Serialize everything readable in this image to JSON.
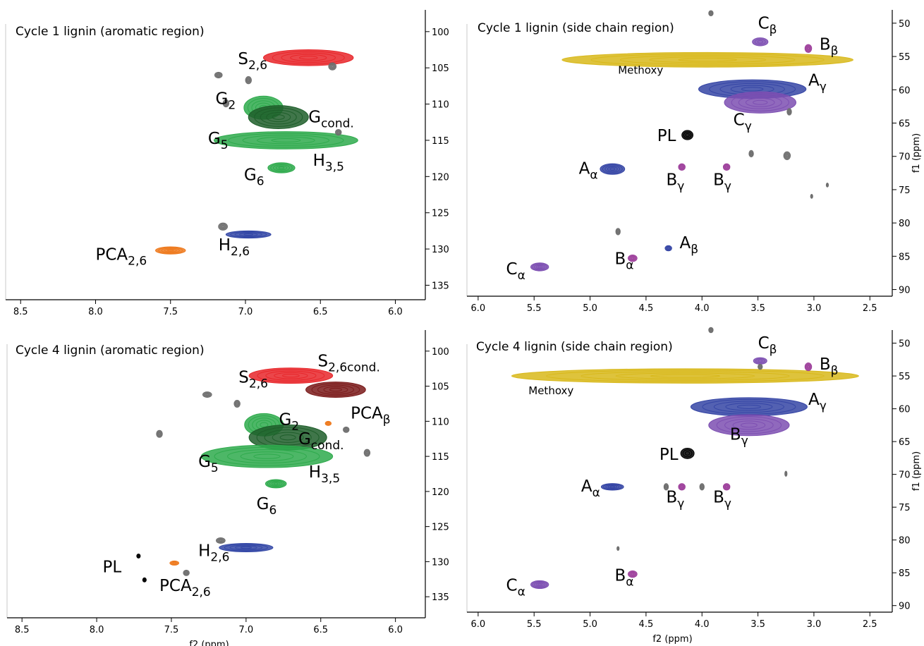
{
  "colors": {
    "S": "#e8262a",
    "Scond": "#7a1a1a",
    "G": "#2eaa4c",
    "Gcond": "#1e5e2a",
    "H": "#3347a6",
    "PCA": "#ee7a1e",
    "A": "#3545a5",
    "B": "#9c3d9a",
    "C": "#7d4fb2",
    "methoxy": "#d8b81a",
    "PL": "#000000",
    "unassigned": "#6e6e6e"
  },
  "axis_names": {
    "x": "f2 (ppm)",
    "y": "f1 (ppm)"
  },
  "chart_data": [
    {
      "type": "contour",
      "title": "Cycle 1 lignin (aromatic region)",
      "xlim": [
        8.6,
        5.8
      ],
      "ylim": [
        137,
        97
      ],
      "xticks": [
        "8.5",
        "8.0",
        "7.5",
        "7.0",
        "6.5",
        "6.0"
      ],
      "yticks": [
        "100",
        "105",
        "110",
        "115",
        "120",
        "125",
        "130",
        "135"
      ],
      "xlabel": "",
      "ylabel": "",
      "peaks": [
        {
          "group": "S",
          "x": 6.58,
          "y": 103.6,
          "rx": 0.3,
          "ry": 1.1
        },
        {
          "group": "G",
          "x": 6.88,
          "y": 110.5,
          "rx": 0.13,
          "ry": 1.6
        },
        {
          "group": "Gcond",
          "x": 6.78,
          "y": 111.8,
          "rx": 0.2,
          "ry": 1.6
        },
        {
          "group": "G",
          "x": 6.73,
          "y": 115.0,
          "rx": 0.48,
          "ry": 1.2
        },
        {
          "group": "G",
          "x": 6.76,
          "y": 118.8,
          "rx": 0.09,
          "ry": 0.7
        },
        {
          "group": "H",
          "x": 6.98,
          "y": 128.0,
          "rx": 0.15,
          "ry": 0.5
        },
        {
          "group": "PCA",
          "x": 7.5,
          "y": 130.2,
          "rx": 0.1,
          "ry": 0.5
        },
        {
          "group": "unassigned",
          "x": 7.18,
          "y": 106.0,
          "rx": 0.025,
          "ry": 0.4
        },
        {
          "group": "unassigned",
          "x": 6.98,
          "y": 106.7,
          "rx": 0.02,
          "ry": 0.5
        },
        {
          "group": "unassigned",
          "x": 6.42,
          "y": 104.8,
          "rx": 0.025,
          "ry": 0.5
        },
        {
          "group": "unassigned",
          "x": 7.13,
          "y": 109.9,
          "rx": 0.02,
          "ry": 0.5
        },
        {
          "group": "unassigned",
          "x": 6.38,
          "y": 113.9,
          "rx": 0.02,
          "ry": 0.4
        },
        {
          "group": "unassigned",
          "x": 7.15,
          "y": 126.9,
          "rx": 0.03,
          "ry": 0.5
        }
      ],
      "labels": [
        {
          "main": "S",
          "sub": "2,6",
          "x": 7.05,
          "y": 104.5
        },
        {
          "main": "G",
          "sub": "2",
          "x": 7.2,
          "y": 110.0
        },
        {
          "main": "G",
          "sub": "cond.",
          "x": 6.58,
          "y": 112.5
        },
        {
          "main": "G",
          "sub": "5",
          "x": 7.25,
          "y": 115.5
        },
        {
          "main": "H",
          "sub": "3,5",
          "x": 6.55,
          "y": 118.5
        },
        {
          "main": "G",
          "sub": "6",
          "x": 7.01,
          "y": 120.5
        },
        {
          "main": "H",
          "sub": "2,6",
          "x": 7.18,
          "y": 130.2
        },
        {
          "main": "PCA",
          "sub": "2,6",
          "x": 8.0,
          "y": 131.5
        }
      ]
    },
    {
      "type": "contour",
      "title": "Cycle 1 lignin (side chain region)",
      "xlim": [
        6.1,
        2.3
      ],
      "ylim": [
        91,
        48
      ],
      "xticks": [
        "6.0",
        "5.5",
        "5.0",
        "4.5",
        "4.0",
        "3.5",
        "3.0",
        "2.5"
      ],
      "yticks": [
        "50",
        "55",
        "60",
        "65",
        "70",
        "75",
        "80",
        "85",
        "90"
      ],
      "xlabel": "",
      "ylabel": "f1 (ppm)",
      "peaks": [
        {
          "group": "methoxy",
          "x": 3.95,
          "y": 55.5,
          "rx": 1.3,
          "ry": 1.1
        },
        {
          "group": "A",
          "x": 3.55,
          "y": 59.9,
          "rx": 0.48,
          "ry": 1.4
        },
        {
          "group": "C",
          "x": 3.48,
          "y": 61.9,
          "rx": 0.32,
          "ry": 1.6
        },
        {
          "group": "C",
          "x": 3.48,
          "y": 52.8,
          "rx": 0.07,
          "ry": 0.6
        },
        {
          "group": "B",
          "x": 3.05,
          "y": 53.8,
          "rx": 0.03,
          "ry": 0.6
        },
        {
          "group": "PL",
          "x": 4.13,
          "y": 66.8,
          "rx": 0.05,
          "ry": 0.7
        },
        {
          "group": "A",
          "x": 4.8,
          "y": 71.9,
          "rx": 0.11,
          "ry": 0.8
        },
        {
          "group": "B",
          "x": 4.18,
          "y": 71.6,
          "rx": 0.03,
          "ry": 0.5
        },
        {
          "group": "B",
          "x": 3.78,
          "y": 71.6,
          "rx": 0.03,
          "ry": 0.5
        },
        {
          "group": "A",
          "x": 4.3,
          "y": 83.8,
          "rx": 0.03,
          "ry": 0.4
        },
        {
          "group": "B",
          "x": 4.62,
          "y": 85.3,
          "rx": 0.04,
          "ry": 0.5
        },
        {
          "group": "C",
          "x": 5.45,
          "y": 86.6,
          "rx": 0.08,
          "ry": 0.6
        },
        {
          "group": "unassigned",
          "x": 3.92,
          "y": 48.5,
          "rx": 0.02,
          "ry": 0.4
        },
        {
          "group": "unassigned",
          "x": 3.24,
          "y": 69.9,
          "rx": 0.03,
          "ry": 0.6
        },
        {
          "group": "unassigned",
          "x": 3.56,
          "y": 69.6,
          "rx": 0.02,
          "ry": 0.5
        },
        {
          "group": "unassigned",
          "x": 3.22,
          "y": 63.3,
          "rx": 0.02,
          "ry": 0.5
        },
        {
          "group": "unassigned",
          "x": 4.75,
          "y": 81.3,
          "rx": 0.02,
          "ry": 0.5
        },
        {
          "group": "unassigned",
          "x": 2.88,
          "y": 74.3,
          "rx": 0.01,
          "ry": 0.3
        },
        {
          "group": "unassigned",
          "x": 3.02,
          "y": 76.0,
          "rx": 0.01,
          "ry": 0.3
        }
      ],
      "labels": [
        {
          "main": "C",
          "sub": "β",
          "x": 3.5,
          "y": 50.8
        },
        {
          "main": "B",
          "sub": "β",
          "x": 2.95,
          "y": 54.0
        },
        {
          "main": "",
          "sub": "",
          "text": "Methoxy",
          "x": 4.75,
          "y": 57.6
        },
        {
          "main": "A",
          "sub": "γ",
          "x": 3.05,
          "y": 59.4
        },
        {
          "main": "C",
          "sub": "γ",
          "x": 3.72,
          "y": 65.3
        },
        {
          "main": "",
          "sub": "",
          "text": "PL",
          "x": 4.4,
          "y": 67.7
        },
        {
          "main": "A",
          "sub": "α",
          "x": 5.1,
          "y": 72.6
        },
        {
          "main": "B",
          "sub": "γ",
          "x": 4.32,
          "y": 74.3
        },
        {
          "main": "B",
          "sub": "γ",
          "x": 3.9,
          "y": 74.3
        },
        {
          "main": "A",
          "sub": "β",
          "x": 4.2,
          "y": 83.8
        },
        {
          "main": "B",
          "sub": "α",
          "x": 4.78,
          "y": 86.2
        },
        {
          "main": "C",
          "sub": "α",
          "x": 5.75,
          "y": 87.7
        }
      ]
    },
    {
      "type": "contour",
      "title": "Cycle 4 lignin (aromatic region)",
      "xlim": [
        8.6,
        5.8
      ],
      "ylim": [
        138,
        97
      ],
      "xticks": [
        "8.5",
        "8.0",
        "7.5",
        "7.0",
        "6.5",
        "6.0"
      ],
      "yticks": [
        "100",
        "105",
        "110",
        "115",
        "120",
        "125",
        "130",
        "135"
      ],
      "xlabel": "f2 (ppm)",
      "ylabel": "",
      "peaks": [
        {
          "group": "S",
          "x": 6.7,
          "y": 103.5,
          "rx": 0.28,
          "ry": 1.1
        },
        {
          "group": "Scond",
          "x": 6.4,
          "y": 105.5,
          "rx": 0.2,
          "ry": 1.1
        },
        {
          "group": "G",
          "x": 6.88,
          "y": 110.5,
          "rx": 0.13,
          "ry": 1.6
        },
        {
          "group": "Gcond",
          "x": 6.72,
          "y": 112.3,
          "rx": 0.26,
          "ry": 1.8
        },
        {
          "group": "G",
          "x": 6.86,
          "y": 115.0,
          "rx": 0.44,
          "ry": 1.6
        },
        {
          "group": "G",
          "x": 6.8,
          "y": 118.9,
          "rx": 0.07,
          "ry": 0.6
        },
        {
          "group": "H",
          "x": 7.0,
          "y": 128.0,
          "rx": 0.18,
          "ry": 0.6
        },
        {
          "group": "PCA",
          "x": 7.48,
          "y": 130.2,
          "rx": 0.03,
          "ry": 0.3
        },
        {
          "group": "PCA",
          "x": 6.45,
          "y": 110.3,
          "rx": 0.02,
          "ry": 0.3
        },
        {
          "group": "PL",
          "x": 7.72,
          "y": 129.2,
          "rx": 0.012,
          "ry": 0.3
        },
        {
          "group": "PL",
          "x": 7.68,
          "y": 132.6,
          "rx": 0.012,
          "ry": 0.3
        },
        {
          "group": "unassigned",
          "x": 7.26,
          "y": 106.2,
          "rx": 0.03,
          "ry": 0.4
        },
        {
          "group": "unassigned",
          "x": 7.06,
          "y": 107.5,
          "rx": 0.02,
          "ry": 0.5
        },
        {
          "group": "unassigned",
          "x": 7.58,
          "y": 111.8,
          "rx": 0.02,
          "ry": 0.5
        },
        {
          "group": "unassigned",
          "x": 6.33,
          "y": 111.2,
          "rx": 0.02,
          "ry": 0.4
        },
        {
          "group": "unassigned",
          "x": 6.19,
          "y": 114.5,
          "rx": 0.02,
          "ry": 0.5
        },
        {
          "group": "unassigned",
          "x": 7.17,
          "y": 127.0,
          "rx": 0.03,
          "ry": 0.4
        },
        {
          "group": "unassigned",
          "x": 7.4,
          "y": 131.6,
          "rx": 0.02,
          "ry": 0.4
        }
      ],
      "labels": [
        {
          "main": "S",
          "sub": "2,6",
          "x": 7.05,
          "y": 104.5
        },
        {
          "main": "S",
          "sub": "2,6cond.",
          "x": 6.52,
          "y": 102.2
        },
        {
          "main": "G",
          "sub": "2",
          "x": 6.78,
          "y": 110.5
        },
        {
          "main": "PCA",
          "sub": "β",
          "x": 6.3,
          "y": 109.6
        },
        {
          "main": "G",
          "sub": "cond.",
          "x": 6.65,
          "y": 113.3
        },
        {
          "main": "G",
          "sub": "5",
          "x": 7.32,
          "y": 116.5
        },
        {
          "main": "H",
          "sub": "3,5",
          "x": 6.58,
          "y": 118.0
        },
        {
          "main": "G",
          "sub": "6",
          "x": 6.93,
          "y": 122.5
        },
        {
          "main": "H",
          "sub": "2,6",
          "x": 7.32,
          "y": 129.2
        },
        {
          "main": "",
          "sub": "",
          "text": "PL",
          "x": 7.96,
          "y": 131.5
        },
        {
          "main": "PCA",
          "sub": "2,6",
          "x": 7.58,
          "y": 134.2
        }
      ]
    },
    {
      "type": "contour",
      "title": "Cycle 4 lignin (side chain region)",
      "xlim": [
        6.1,
        2.3
      ],
      "ylim": [
        91,
        48
      ],
      "xticks": [
        "6.0",
        "5.5",
        "5.0",
        "4.5",
        "4.0",
        "3.5",
        "3.0",
        "2.5"
      ],
      "yticks": [
        "50",
        "55",
        "60",
        "65",
        "70",
        "75",
        "80",
        "85",
        "90"
      ],
      "xlabel": "f2 (ppm)",
      "ylabel": "f1 (ppm)",
      "peaks": [
        {
          "group": "methoxy",
          "x": 4.15,
          "y": 55.0,
          "rx": 1.55,
          "ry": 1.1
        },
        {
          "group": "A",
          "x": 3.58,
          "y": 59.7,
          "rx": 0.52,
          "ry": 1.4
        },
        {
          "group": "C",
          "x": 3.58,
          "y": 62.5,
          "rx": 0.36,
          "ry": 1.6
        },
        {
          "group": "C",
          "x": 3.48,
          "y": 52.7,
          "rx": 0.06,
          "ry": 0.5
        },
        {
          "group": "B",
          "x": 3.05,
          "y": 53.6,
          "rx": 0.03,
          "ry": 0.6
        },
        {
          "group": "PL",
          "x": 4.13,
          "y": 66.8,
          "rx": 0.06,
          "ry": 0.8
        },
        {
          "group": "A",
          "x": 4.8,
          "y": 71.9,
          "rx": 0.1,
          "ry": 0.5
        },
        {
          "group": "B",
          "x": 4.18,
          "y": 71.9,
          "rx": 0.03,
          "ry": 0.5
        },
        {
          "group": "B",
          "x": 3.78,
          "y": 71.9,
          "rx": 0.03,
          "ry": 0.5
        },
        {
          "group": "B",
          "x": 4.62,
          "y": 85.2,
          "rx": 0.04,
          "ry": 0.5
        },
        {
          "group": "C",
          "x": 5.45,
          "y": 86.8,
          "rx": 0.08,
          "ry": 0.6
        },
        {
          "group": "unassigned",
          "x": 3.92,
          "y": 48.0,
          "rx": 0.02,
          "ry": 0.4
        },
        {
          "group": "unassigned",
          "x": 3.48,
          "y": 53.6,
          "rx": 0.02,
          "ry": 0.4
        },
        {
          "group": "unassigned",
          "x": 4.32,
          "y": 71.9,
          "rx": 0.02,
          "ry": 0.5
        },
        {
          "group": "unassigned",
          "x": 4.0,
          "y": 71.9,
          "rx": 0.02,
          "ry": 0.5
        },
        {
          "group": "unassigned",
          "x": 3.25,
          "y": 69.9,
          "rx": 0.01,
          "ry": 0.4
        },
        {
          "group": "unassigned",
          "x": 4.75,
          "y": 81.3,
          "rx": 0.01,
          "ry": 0.3
        }
      ],
      "labels": [
        {
          "main": "C",
          "sub": "β",
          "x": 3.5,
          "y": 50.8
        },
        {
          "main": "B",
          "sub": "β",
          "x": 2.95,
          "y": 54.0
        },
        {
          "main": "",
          "sub": "",
          "text": "Methoxy",
          "x": 5.55,
          "y": 57.8
        },
        {
          "main": "A",
          "sub": "γ",
          "x": 3.05,
          "y": 59.4
        },
        {
          "main": "B",
          "sub": "γ",
          "x": 3.75,
          "y": 64.7
        },
        {
          "main": "",
          "sub": "",
          "text": "PL",
          "x": 4.38,
          "y": 67.8
        },
        {
          "main": "A",
          "sub": "α",
          "x": 5.08,
          "y": 72.6
        },
        {
          "main": "B",
          "sub": "γ",
          "x": 4.32,
          "y": 74.3
        },
        {
          "main": "B",
          "sub": "γ",
          "x": 3.9,
          "y": 74.3
        },
        {
          "main": "B",
          "sub": "α",
          "x": 4.78,
          "y": 86.2
        },
        {
          "main": "C",
          "sub": "α",
          "x": 5.75,
          "y": 87.7
        }
      ]
    }
  ]
}
